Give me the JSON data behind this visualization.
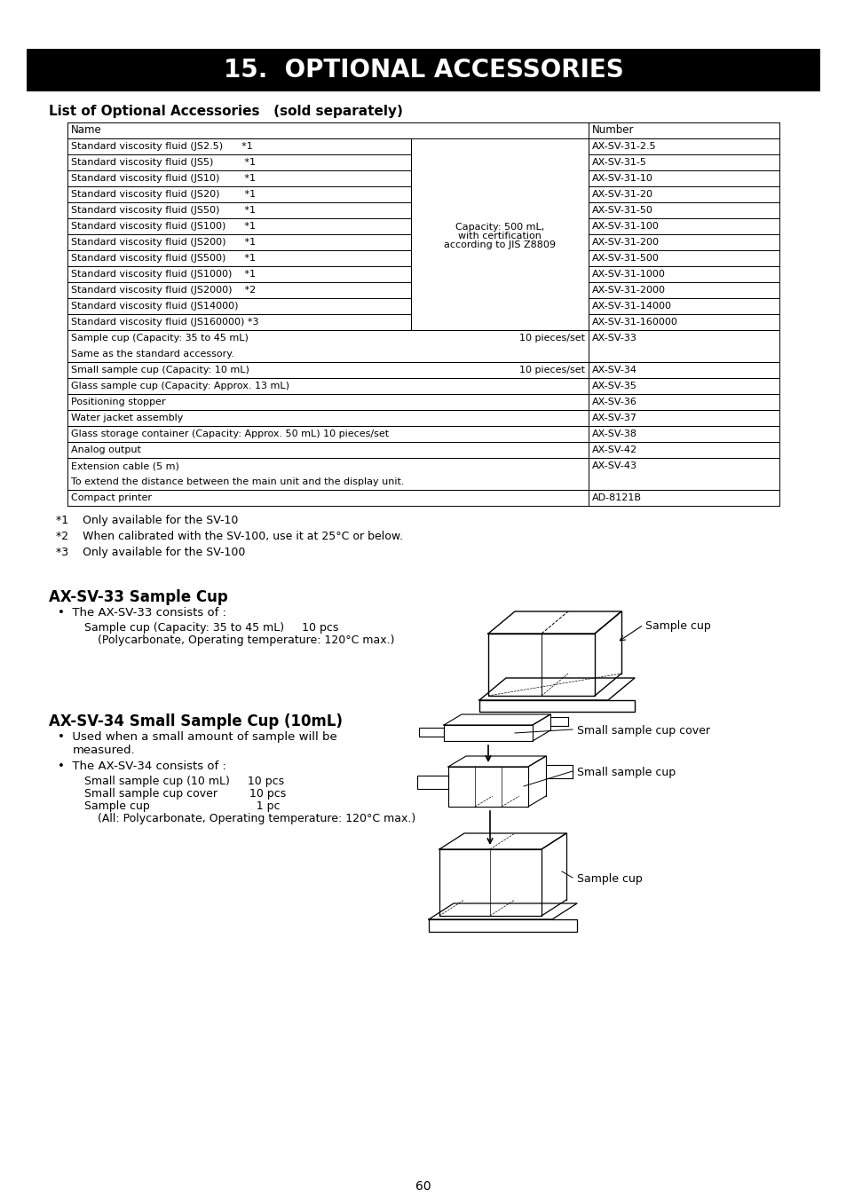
{
  "title": "15.  OPTIONAL ACCESSORIES",
  "subtitle": "List of Optional Accessories   (sold separately)",
  "viscosity_rows": [
    [
      "Standard viscosity fluid (JS2.5)      *1",
      "AX-SV-31-2.5"
    ],
    [
      "Standard viscosity fluid (JS5)          *1",
      "AX-SV-31-5"
    ],
    [
      "Standard viscosity fluid (JS10)        *1",
      "AX-SV-31-10"
    ],
    [
      "Standard viscosity fluid (JS20)        *1",
      "AX-SV-31-20"
    ],
    [
      "Standard viscosity fluid (JS50)        *1",
      "AX-SV-31-50"
    ],
    [
      "Standard viscosity fluid (JS100)      *1",
      "AX-SV-31-100"
    ],
    [
      "Standard viscosity fluid (JS200)      *1",
      "AX-SV-31-200"
    ],
    [
      "Standard viscosity fluid (JS500)      *1",
      "AX-SV-31-500"
    ],
    [
      "Standard viscosity fluid (JS1000)    *1",
      "AX-SV-31-1000"
    ],
    [
      "Standard viscosity fluid (JS2000)    *2",
      "AX-SV-31-2000"
    ],
    [
      "Standard viscosity fluid (JS14000)",
      "AX-SV-31-14000"
    ],
    [
      "Standard viscosity fluid (JS160000) *3",
      "AX-SV-31-160000"
    ]
  ],
  "mid_text": [
    "Capacity: 500 mL,",
    "with certification",
    "according to JIS Z8809"
  ],
  "other_rows": [
    {
      "name": "Sample cup (Capacity: 35 to 45 mL)",
      "extra": "10 pieces/set",
      "num": "AX-SV-33",
      "sub": "Same as the standard accessory."
    },
    {
      "name": "Small sample cup (Capacity: 10 mL)",
      "extra": "10 pieces/set",
      "num": "AX-SV-34",
      "sub": ""
    },
    {
      "name": "Glass sample cup (Capacity: Approx. 13 mL)",
      "extra": "",
      "num": "AX-SV-35",
      "sub": ""
    },
    {
      "name": "Positioning stopper",
      "extra": "",
      "num": "AX-SV-36",
      "sub": ""
    },
    {
      "name": "Water jacket assembly",
      "extra": "",
      "num": "AX-SV-37",
      "sub": ""
    },
    {
      "name": "Glass storage container (Capacity: Approx. 50 mL) 10 pieces/set",
      "extra": "",
      "num": "AX-SV-38",
      "sub": ""
    },
    {
      "name": "Analog output",
      "extra": "",
      "num": "AX-SV-42",
      "sub": ""
    },
    {
      "name": "Extension cable (5 m)",
      "extra": "",
      "num": "AX-SV-43",
      "sub": "To extend the distance between the main unit and the display unit."
    },
    {
      "name": "Compact printer",
      "extra": "",
      "num": "AD-8121B",
      "sub": ""
    }
  ],
  "footnotes": [
    "  *1    Only available for the SV-10",
    "  *2    When calibrated with the SV-100, use it at 25°C or below.",
    "  *3    Only available for the SV-100"
  ],
  "section1_title": "AX-SV-33 Sample Cup",
  "section2_title": "AX-SV-34 Small Sample Cup (10mL)",
  "page_number": "60"
}
